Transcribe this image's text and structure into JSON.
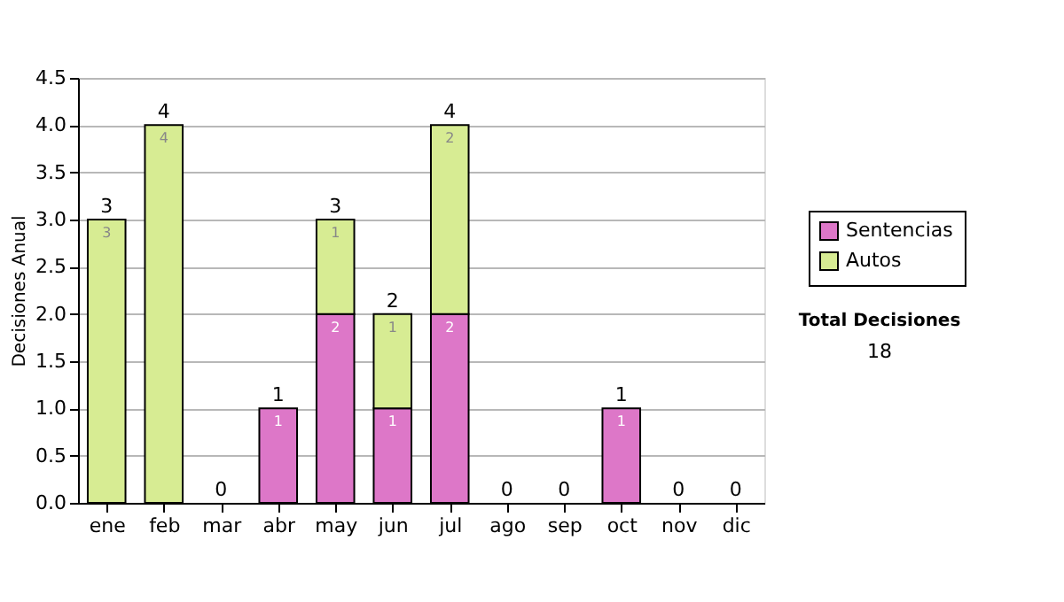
{
  "chart_data": {
    "type": "bar",
    "stacked": true,
    "ylabel": "Decisiones Anual",
    "categories": [
      "ene",
      "feb",
      "mar",
      "abr",
      "may",
      "jun",
      "jul",
      "ago",
      "sep",
      "oct",
      "nov",
      "dic"
    ],
    "series": [
      {
        "name": "Sentencias",
        "color": "#dd77c8",
        "values": [
          0,
          0,
          0,
          1,
          2,
          1,
          2,
          0,
          0,
          1,
          0,
          0
        ],
        "value_labels": [
          null,
          null,
          null,
          "1",
          "2",
          "1",
          "2",
          null,
          null,
          "1",
          null,
          null
        ]
      },
      {
        "name": "Autos",
        "color": "#d7ec93",
        "values": [
          3,
          4,
          0,
          0,
          1,
          1,
          2,
          0,
          0,
          0,
          0,
          0
        ],
        "value_labels": [
          "3",
          "4",
          null,
          null,
          "1",
          "1",
          "2",
          null,
          null,
          null,
          null,
          null
        ]
      }
    ],
    "totals": [
      "3",
      "4",
      "0",
      "1",
      "3",
      "2",
      "4",
      "0",
      "0",
      "1",
      "0",
      "0"
    ],
    "ylim": [
      0,
      4.5
    ],
    "yticks": [
      {
        "value": 0,
        "label": "0.0"
      },
      {
        "value": 0.5,
        "label": "0.5"
      },
      {
        "value": 1,
        "label": "1.0"
      },
      {
        "value": 1.5,
        "label": "1.5"
      },
      {
        "value": 2,
        "label": "2.0"
      },
      {
        "value": 2.5,
        "label": "2.5"
      },
      {
        "value": 3,
        "label": "3.0"
      },
      {
        "value": 3.5,
        "label": "3.5"
      },
      {
        "value": 4,
        "label": "4.0"
      },
      {
        "value": 4.5,
        "label": "4.5"
      }
    ],
    "grid": "y",
    "legend": "right",
    "annotations": [
      "Total Decisiones",
      "18"
    ]
  }
}
